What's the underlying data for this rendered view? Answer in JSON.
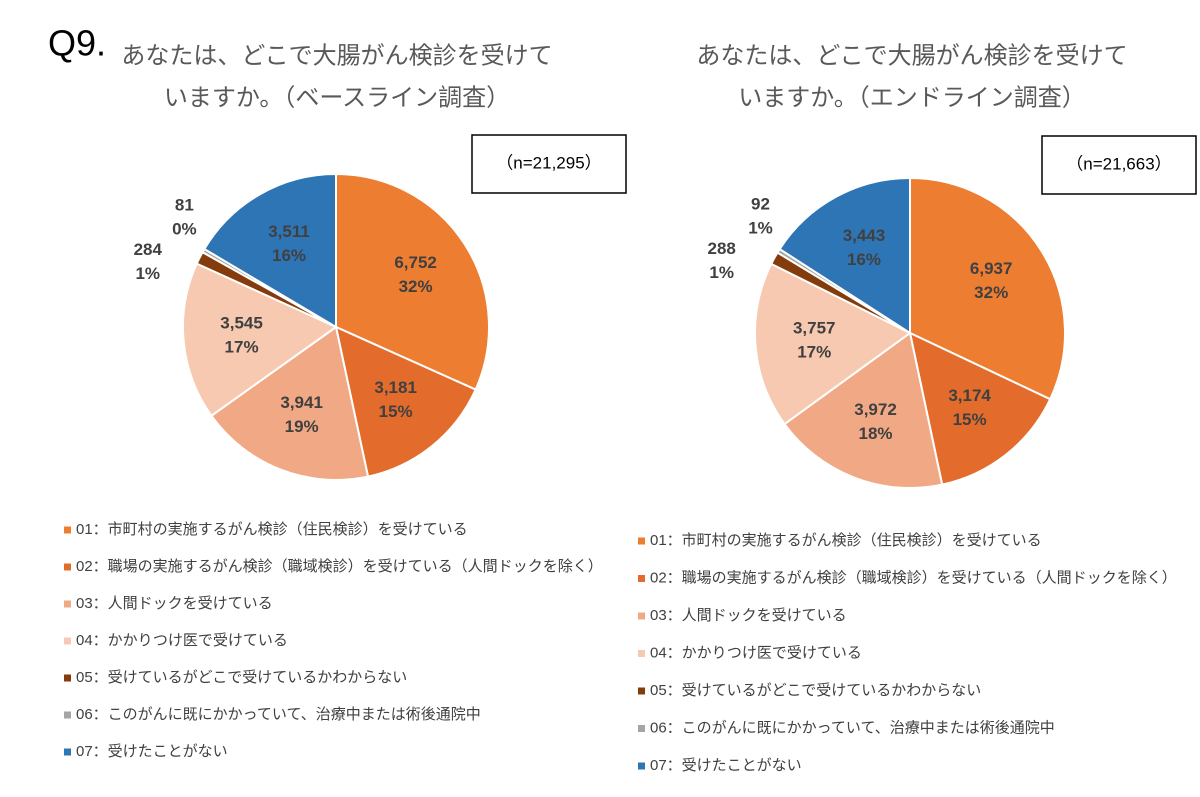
{
  "question": "Q9.",
  "chart_data": [
    {
      "type": "pie",
      "title": [
        "あなたは、どこで大腸がん検診を受けて",
        "いますか。（ベースライン調査）"
      ],
      "note": "（n=21,295）",
      "categories": [
        "01：市町村の実施するがん検診（住民検診）を受けている",
        "02：職場の実施するがん検診（職域検診）を受けている（人間ドックを除く）",
        "03：人間ドックを受けている",
        "04：かかりつけ医で受けている",
        "05：受けているがどこで受けているかわからない",
        "06：このがんに既にかかっていて、治療中または術後通院中",
        "07：受けたことがない"
      ],
      "values": [
        6752,
        3181,
        3941,
        3545,
        284,
        81,
        3511
      ],
      "value_labels": [
        "6,752",
        "3,181",
        "3,941",
        "3,545",
        "284",
        "81",
        "3,511"
      ],
      "percents": [
        32,
        15,
        19,
        17,
        1,
        0,
        16
      ],
      "percent_labels": [
        "32%",
        "15%",
        "19%",
        "17%",
        "1%",
        "0%",
        "16%"
      ],
      "colors": [
        "#ed7d31",
        "#e36c2c",
        "#f1a985",
        "#f7c9b0",
        "#843c0c",
        "#a5a5a5",
        "#2e75b6"
      ]
    },
    {
      "type": "pie",
      "title": [
        "あなたは、どこで大腸がん検診を受けて",
        "いますか。（エンドライン調査）"
      ],
      "note": "（n=21,663）",
      "categories": [
        "01：市町村の実施するがん検診（住民検診）を受けている",
        "02：職場の実施するがん検診（職域検診）を受けている（人間ドックを除く）",
        "03：人間ドックを受けている",
        "04：かかりつけ医で受けている",
        "05：受けているがどこで受けているかわからない",
        "06：このがんに既にかかっていて、治療中または術後通院中",
        "07：受けたことがない"
      ],
      "values": [
        6937,
        3174,
        3972,
        3757,
        288,
        92,
        3443
      ],
      "value_labels": [
        "6,937",
        "3,174",
        "3,972",
        "3,757",
        "288",
        "92",
        "3,443"
      ],
      "percents": [
        32,
        15,
        18,
        17,
        1,
        1,
        16
      ],
      "percent_labels": [
        "32%",
        "15%",
        "18%",
        "17%",
        "1%",
        "1%",
        "16%"
      ],
      "colors": [
        "#ed7d31",
        "#e36c2c",
        "#f1a985",
        "#f7c9b0",
        "#843c0c",
        "#a5a5a5",
        "#2e75b6"
      ]
    }
  ]
}
